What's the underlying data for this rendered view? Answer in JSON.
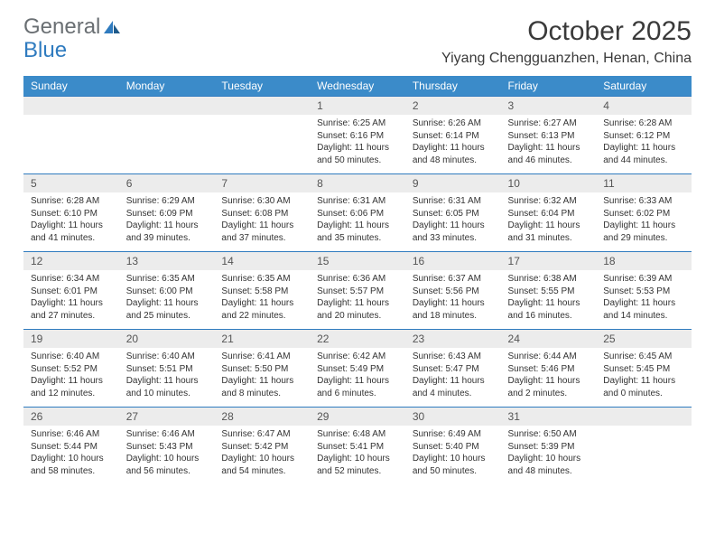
{
  "logo": {
    "text1": "General",
    "text2": "Blue"
  },
  "title": "October 2025",
  "location": "Yiyang Chengguanzhen, Henan, China",
  "colors": {
    "header_bg": "#3b8bc9",
    "header_text": "#ffffff",
    "daynum_bg": "#ececec",
    "border": "#2f7bbf",
    "logo_gray": "#6a6f73",
    "logo_blue": "#2f7bbf"
  },
  "weekdays": [
    "Sunday",
    "Monday",
    "Tuesday",
    "Wednesday",
    "Thursday",
    "Friday",
    "Saturday"
  ],
  "weeks": [
    [
      null,
      null,
      null,
      {
        "n": "1",
        "sr": "6:25 AM",
        "ss": "6:16 PM",
        "dl": "11 hours and 50 minutes."
      },
      {
        "n": "2",
        "sr": "6:26 AM",
        "ss": "6:14 PM",
        "dl": "11 hours and 48 minutes."
      },
      {
        "n": "3",
        "sr": "6:27 AM",
        "ss": "6:13 PM",
        "dl": "11 hours and 46 minutes."
      },
      {
        "n": "4",
        "sr": "6:28 AM",
        "ss": "6:12 PM",
        "dl": "11 hours and 44 minutes."
      }
    ],
    [
      {
        "n": "5",
        "sr": "6:28 AM",
        "ss": "6:10 PM",
        "dl": "11 hours and 41 minutes."
      },
      {
        "n": "6",
        "sr": "6:29 AM",
        "ss": "6:09 PM",
        "dl": "11 hours and 39 minutes."
      },
      {
        "n": "7",
        "sr": "6:30 AM",
        "ss": "6:08 PM",
        "dl": "11 hours and 37 minutes."
      },
      {
        "n": "8",
        "sr": "6:31 AM",
        "ss": "6:06 PM",
        "dl": "11 hours and 35 minutes."
      },
      {
        "n": "9",
        "sr": "6:31 AM",
        "ss": "6:05 PM",
        "dl": "11 hours and 33 minutes."
      },
      {
        "n": "10",
        "sr": "6:32 AM",
        "ss": "6:04 PM",
        "dl": "11 hours and 31 minutes."
      },
      {
        "n": "11",
        "sr": "6:33 AM",
        "ss": "6:02 PM",
        "dl": "11 hours and 29 minutes."
      }
    ],
    [
      {
        "n": "12",
        "sr": "6:34 AM",
        "ss": "6:01 PM",
        "dl": "11 hours and 27 minutes."
      },
      {
        "n": "13",
        "sr": "6:35 AM",
        "ss": "6:00 PM",
        "dl": "11 hours and 25 minutes."
      },
      {
        "n": "14",
        "sr": "6:35 AM",
        "ss": "5:58 PM",
        "dl": "11 hours and 22 minutes."
      },
      {
        "n": "15",
        "sr": "6:36 AM",
        "ss": "5:57 PM",
        "dl": "11 hours and 20 minutes."
      },
      {
        "n": "16",
        "sr": "6:37 AM",
        "ss": "5:56 PM",
        "dl": "11 hours and 18 minutes."
      },
      {
        "n": "17",
        "sr": "6:38 AM",
        "ss": "5:55 PM",
        "dl": "11 hours and 16 minutes."
      },
      {
        "n": "18",
        "sr": "6:39 AM",
        "ss": "5:53 PM",
        "dl": "11 hours and 14 minutes."
      }
    ],
    [
      {
        "n": "19",
        "sr": "6:40 AM",
        "ss": "5:52 PM",
        "dl": "11 hours and 12 minutes."
      },
      {
        "n": "20",
        "sr": "6:40 AM",
        "ss": "5:51 PM",
        "dl": "11 hours and 10 minutes."
      },
      {
        "n": "21",
        "sr": "6:41 AM",
        "ss": "5:50 PM",
        "dl": "11 hours and 8 minutes."
      },
      {
        "n": "22",
        "sr": "6:42 AM",
        "ss": "5:49 PM",
        "dl": "11 hours and 6 minutes."
      },
      {
        "n": "23",
        "sr": "6:43 AM",
        "ss": "5:47 PM",
        "dl": "11 hours and 4 minutes."
      },
      {
        "n": "24",
        "sr": "6:44 AM",
        "ss": "5:46 PM",
        "dl": "11 hours and 2 minutes."
      },
      {
        "n": "25",
        "sr": "6:45 AM",
        "ss": "5:45 PM",
        "dl": "11 hours and 0 minutes."
      }
    ],
    [
      {
        "n": "26",
        "sr": "6:46 AM",
        "ss": "5:44 PM",
        "dl": "10 hours and 58 minutes."
      },
      {
        "n": "27",
        "sr": "6:46 AM",
        "ss": "5:43 PM",
        "dl": "10 hours and 56 minutes."
      },
      {
        "n": "28",
        "sr": "6:47 AM",
        "ss": "5:42 PM",
        "dl": "10 hours and 54 minutes."
      },
      {
        "n": "29",
        "sr": "6:48 AM",
        "ss": "5:41 PM",
        "dl": "10 hours and 52 minutes."
      },
      {
        "n": "30",
        "sr": "6:49 AM",
        "ss": "5:40 PM",
        "dl": "10 hours and 50 minutes."
      },
      {
        "n": "31",
        "sr": "6:50 AM",
        "ss": "5:39 PM",
        "dl": "10 hours and 48 minutes."
      },
      null
    ]
  ],
  "labels": {
    "sunrise": "Sunrise:",
    "sunset": "Sunset:",
    "daylight": "Daylight:"
  }
}
